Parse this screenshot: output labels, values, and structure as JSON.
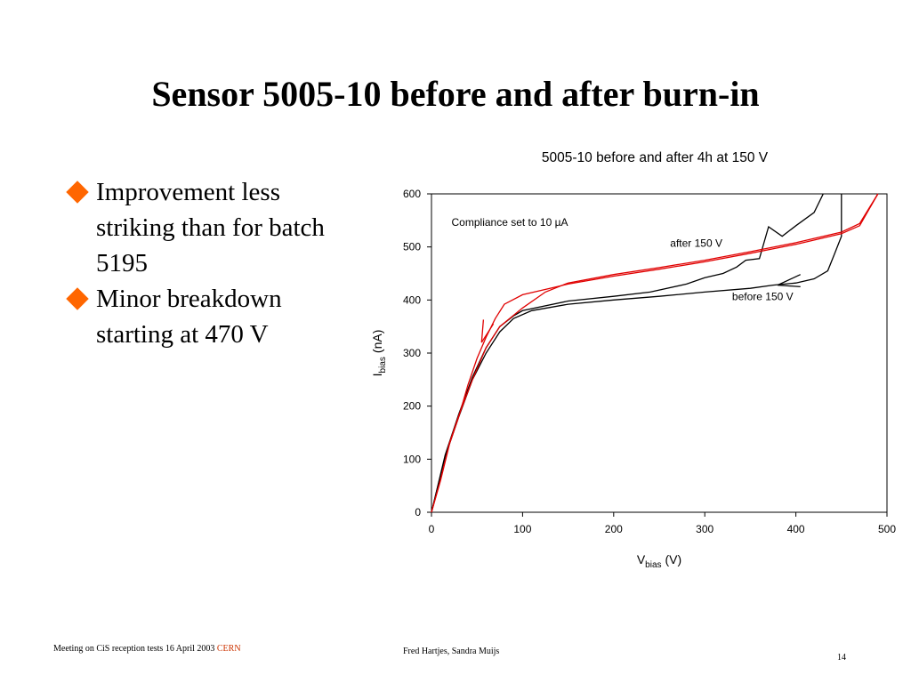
{
  "slide": {
    "title": "Sensor 5005-10 before and after burn-in",
    "bullets": [
      {
        "text": "Improvement less striking than for batch 5195"
      },
      {
        "text": "Minor breakdown starting at 470 V"
      }
    ],
    "footer": {
      "left": "Meeting on CiS reception tests 16 April 2003",
      "cern": "CERN",
      "center": "Fred Hartjes, Sandra Muijs",
      "page": "14"
    },
    "colors": {
      "bullet": "#ff6600",
      "after_series": "#e00000",
      "before_series": "#000000",
      "cern": "#cc3300"
    }
  },
  "chart_data": {
    "type": "line",
    "title": "5005-10 before and after 4h at 150 V",
    "xlabel": {
      "main": "V",
      "sub": "bias",
      "unit": "(V)"
    },
    "ylabel": {
      "main": "I",
      "sub": "bias",
      "unit": "(nA)"
    },
    "xlim": [
      0,
      500
    ],
    "ylim": [
      0,
      600
    ],
    "xticks": [
      0,
      100,
      200,
      300,
      400,
      500
    ],
    "yticks": [
      0,
      100,
      200,
      300,
      400,
      500,
      600
    ],
    "grid": false,
    "annotations": [
      {
        "text": "Compliance set to 10 µA",
        "x": 22,
        "y": 540
      },
      {
        "text": "after 150 V",
        "x": 262,
        "y": 500
      },
      {
        "text": "before 150 V",
        "x": 330,
        "y": 400
      }
    ],
    "series": [
      {
        "color": "#000000",
        "points": [
          [
            0,
            0
          ],
          [
            15,
            105
          ],
          [
            30,
            180
          ],
          [
            45,
            250
          ],
          [
            60,
            300
          ],
          [
            75,
            340
          ],
          [
            90,
            365
          ],
          [
            110,
            380
          ],
          [
            150,
            392
          ],
          [
            200,
            400
          ],
          [
            250,
            407
          ],
          [
            300,
            415
          ],
          [
            350,
            422
          ],
          [
            375,
            428
          ],
          [
            400,
            432
          ],
          [
            420,
            440
          ],
          [
            435,
            455
          ],
          [
            442,
            485
          ],
          [
            450,
            520
          ],
          [
            450,
            600
          ]
        ]
      },
      {
        "color": "#000000",
        "points": [
          [
            0,
            0
          ],
          [
            15,
            108
          ],
          [
            30,
            185
          ],
          [
            45,
            255
          ],
          [
            60,
            310
          ],
          [
            75,
            350
          ],
          [
            90,
            370
          ],
          [
            100,
            380
          ],
          [
            150,
            398
          ],
          [
            200,
            407
          ],
          [
            240,
            415
          ],
          [
            280,
            430
          ],
          [
            300,
            442
          ],
          [
            320,
            450
          ],
          [
            335,
            462
          ],
          [
            345,
            475
          ],
          [
            360,
            478
          ],
          [
            370,
            538
          ],
          [
            385,
            520
          ],
          [
            400,
            540
          ],
          [
            420,
            565
          ],
          [
            430,
            600
          ]
        ]
      },
      {
        "color": "#000000",
        "points": [
          [
            380,
            428
          ],
          [
            405,
            448
          ]
        ]
      },
      {
        "color": "#000000",
        "points": [
          [
            380,
            428
          ],
          [
            405,
            425
          ]
        ]
      },
      {
        "color": "#e00000",
        "points": [
          [
            0,
            0
          ],
          [
            10,
            60
          ],
          [
            20,
            130
          ],
          [
            30,
            180
          ],
          [
            40,
            240
          ],
          [
            50,
            290
          ],
          [
            60,
            330
          ],
          [
            70,
            365
          ],
          [
            80,
            392
          ],
          [
            100,
            410
          ],
          [
            130,
            422
          ],
          [
            150,
            430
          ],
          [
            200,
            445
          ],
          [
            250,
            458
          ],
          [
            300,
            472
          ],
          [
            350,
            488
          ],
          [
            400,
            505
          ],
          [
            450,
            525
          ],
          [
            470,
            540
          ],
          [
            480,
            570
          ],
          [
            490,
            600
          ]
        ]
      },
      {
        "color": "#e00000",
        "points": [
          [
            0,
            0
          ],
          [
            10,
            62
          ],
          [
            20,
            132
          ],
          [
            30,
            182
          ],
          [
            45,
            250
          ],
          [
            60,
            310
          ],
          [
            75,
            350
          ],
          [
            100,
            385
          ],
          [
            125,
            415
          ],
          [
            150,
            432
          ],
          [
            200,
            448
          ],
          [
            250,
            461
          ],
          [
            300,
            475
          ],
          [
            350,
            491
          ],
          [
            400,
            508
          ],
          [
            450,
            528
          ],
          [
            470,
            544
          ],
          [
            480,
            572
          ],
          [
            490,
            600
          ]
        ]
      },
      {
        "color": "#e00000",
        "points": [
          [
            55,
            320
          ],
          [
            57,
            363
          ]
        ]
      },
      {
        "color": "#e00000",
        "points": [
          [
            55,
            320
          ],
          [
            68,
            355
          ]
        ]
      }
    ]
  }
}
